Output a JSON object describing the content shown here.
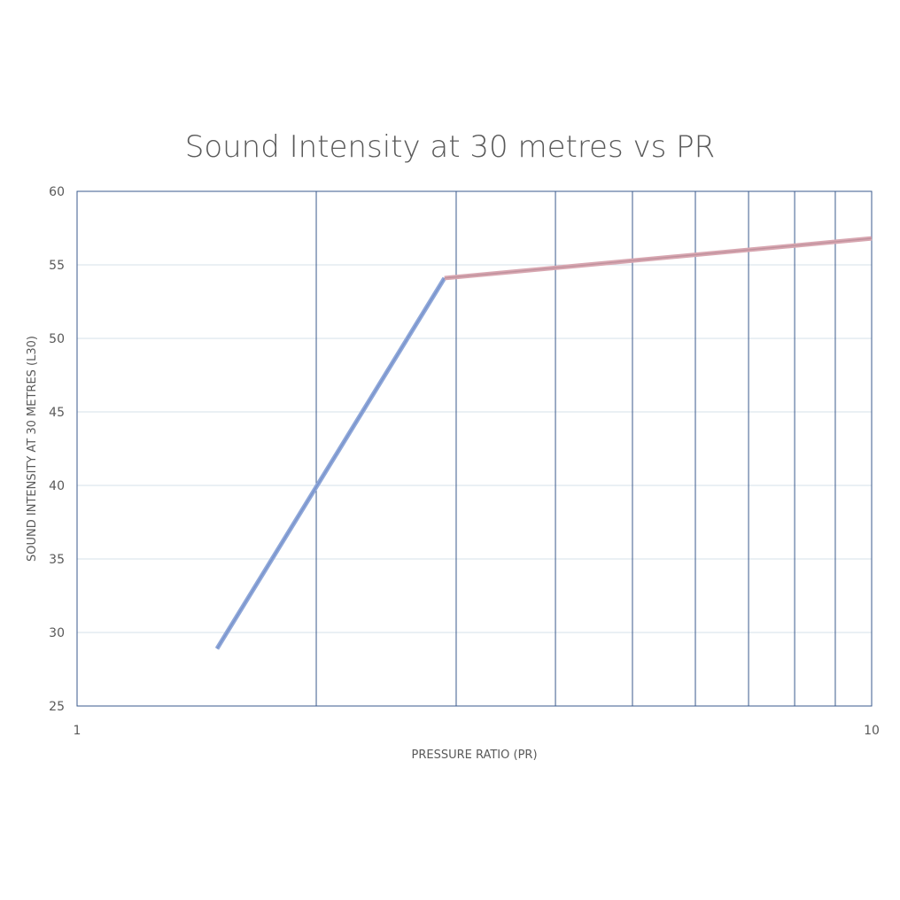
{
  "chart_data": {
    "type": "line",
    "title": "Sound Intensity at 30 metres vs PR",
    "xlabel": "PRESSURE RATIO (PR)",
    "ylabel": "SOUND INTENSITY AT 30 METRES (L30)",
    "x_scale": "log",
    "xlim": [
      1,
      10
    ],
    "ylim": [
      25,
      60
    ],
    "x_ticks": [
      1,
      10
    ],
    "x_tick_labels": [
      "1",
      "10"
    ],
    "y_ticks": [
      25,
      30,
      35,
      40,
      45,
      50,
      55,
      60
    ],
    "y_tick_labels": [
      "25",
      "30",
      "35",
      "40",
      "45",
      "50",
      "55",
      "60"
    ],
    "grid": "major horizontal and minor vertical gridlines",
    "series": [
      {
        "color": "#8ea6d8",
        "x": [
          1.5,
          2.9
        ],
        "y": [
          28.9,
          54.1
        ]
      },
      {
        "color": "#d7a6b0",
        "x": [
          2.9,
          10
        ],
        "y": [
          54.1,
          56.8
        ]
      }
    ]
  }
}
